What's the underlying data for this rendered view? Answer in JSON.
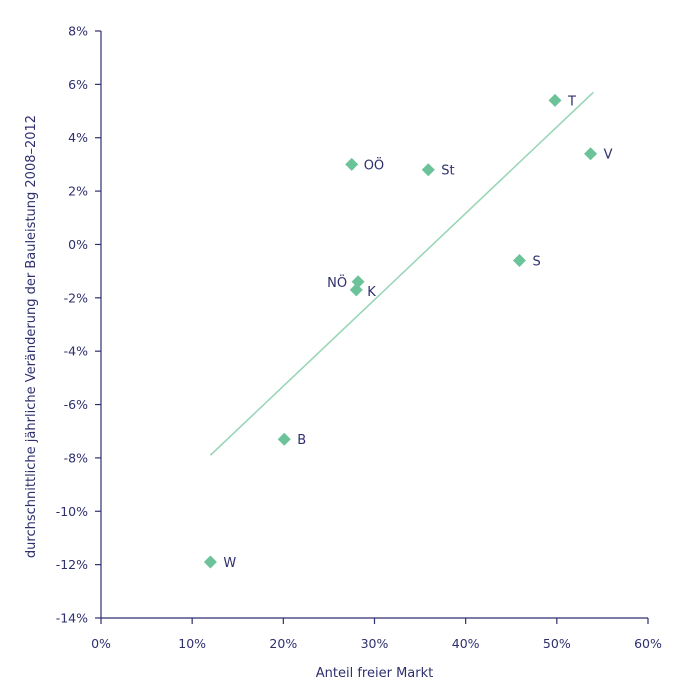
{
  "chart_data": {
    "type": "scatter",
    "title": "",
    "xlabel": "Anteil freier Markt",
    "ylabel": "durchschnittliche jährliche Veränderung der Bauleistung 2008–2012",
    "xlim": [
      0,
      60
    ],
    "ylim": [
      -14,
      8
    ],
    "x_ticks": [
      0,
      10,
      20,
      30,
      40,
      50,
      60
    ],
    "x_tick_labels": [
      "0%",
      "10%",
      "20%",
      "30%",
      "40%",
      "50%",
      "60%"
    ],
    "y_ticks": [
      8,
      6,
      4,
      2,
      0,
      -2,
      -4,
      -6,
      -8,
      -10,
      -12,
      -14
    ],
    "y_tick_labels": [
      "8%",
      "6%",
      "4%",
      "2%",
      "0%",
      "-2%",
      "-4%",
      "-6%",
      "-8%",
      "-10%",
      "-12%",
      "-14%"
    ],
    "grid": false,
    "marker": "diamond",
    "colors": {
      "marker": "#6cc39a",
      "trendline": "#9bd6b8",
      "axis": "#2e2f6e",
      "text": "#2e2f6e"
    },
    "points": [
      {
        "label": "W",
        "x": 12.0,
        "y": -11.9
      },
      {
        "label": "B",
        "x": 20.1,
        "y": -7.3
      },
      {
        "label": "NÖ",
        "x": 28.2,
        "y": -1.4
      },
      {
        "label": "K",
        "x": 28.0,
        "y": -1.7
      },
      {
        "label": "OÖ",
        "x": 27.5,
        "y": 3.0
      },
      {
        "label": "St",
        "x": 35.9,
        "y": 2.8
      },
      {
        "label": "S",
        "x": 45.9,
        "y": -0.6
      },
      {
        "label": "T",
        "x": 49.8,
        "y": 5.4
      },
      {
        "label": "V",
        "x": 53.7,
        "y": 3.4
      }
    ],
    "trendline": {
      "x": [
        12.0,
        54.0
      ],
      "y": [
        -7.9,
        5.7
      ]
    }
  }
}
